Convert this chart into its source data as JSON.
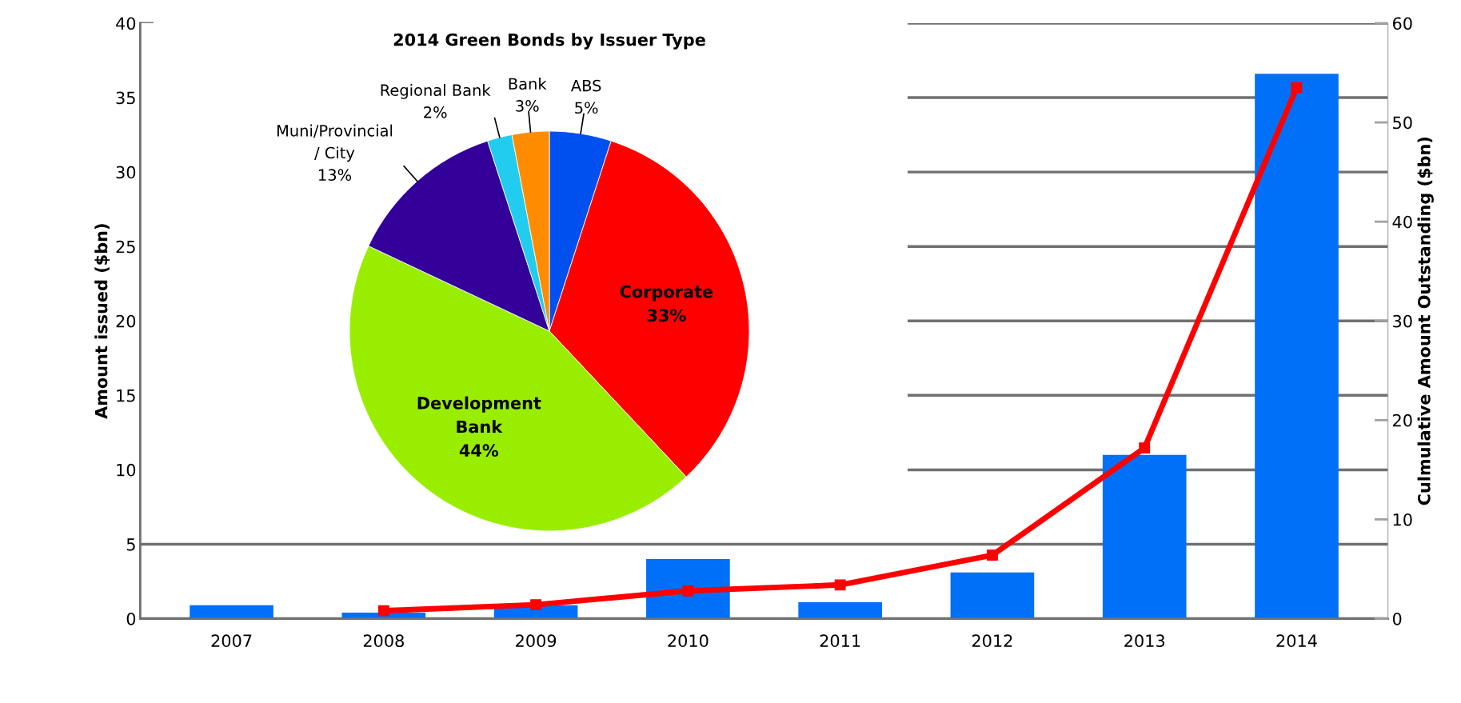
{
  "chart_data": [
    {
      "type": "bar",
      "categories": [
        "2007",
        "2008",
        "2009",
        "2010",
        "2011",
        "2012",
        "2013",
        "2014"
      ],
      "series": [
        {
          "type": "bar",
          "color": "#0070f8",
          "values": [
            0.9,
            0.4,
            0.9,
            4.0,
            1.1,
            3.1,
            11.0,
            36.6
          ]
        },
        {
          "type": "line",
          "axis": "y2",
          "color": "#ff0000",
          "values": [
            null,
            0.8,
            1.4,
            2.8,
            3.4,
            6.4,
            17.2,
            53.5
          ]
        }
      ],
      "ylabel": "Amount issued ($bn)",
      "y2label": "Culmulative Amount Outstanding ($bn)",
      "ylim": [
        0,
        40
      ],
      "yticks": [
        0,
        5,
        10,
        15,
        20,
        25,
        30,
        35,
        40
      ],
      "y2lim": [
        0,
        60
      ],
      "y2ticks": [
        0,
        10,
        20,
        30,
        40,
        50,
        60
      ],
      "grid": "y",
      "marker": "square",
      "line_style": "solid",
      "legend": false
    },
    {
      "type": "pie",
      "title": "2014 Green Bonds by Issuer Type",
      "categories": [
        "ABS",
        "Corporate",
        "Development\nBank",
        "Muni/Provincial\n/ City",
        "Regional Bank",
        "Bank"
      ],
      "values": [
        5,
        33,
        44,
        13,
        2,
        3
      ],
      "colors": [
        "#0050f0",
        "#ff0000",
        "#99ee00",
        "#330099",
        "#22ccee",
        "#ff8c00"
      ],
      "value_labels": [
        "5%",
        "33%",
        "44%",
        "13%",
        "2%",
        "3%"
      ]
    }
  ]
}
